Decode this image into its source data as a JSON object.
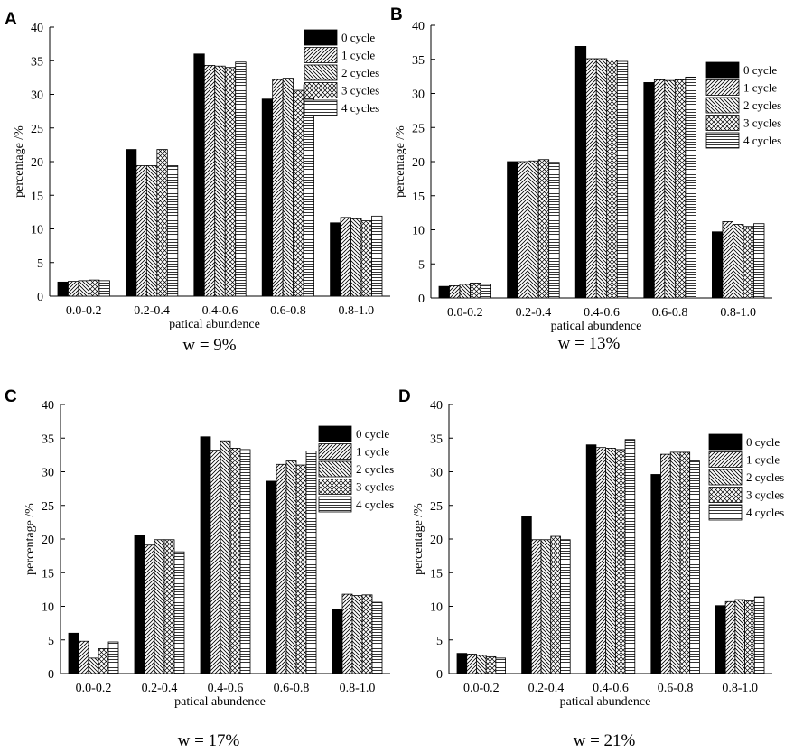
{
  "figure": {
    "legend_title": "",
    "colors": {
      "ink": "#000000",
      "background": "#ffffff",
      "solid_fill": "#000000"
    }
  },
  "chart_data": [
    {
      "type": "bar",
      "panel": "A",
      "caption": "w = 9%",
      "xlabel": "patical abundence",
      "ylabel": "percentage /%",
      "ylim": [
        0,
        40
      ],
      "yticks": [
        0,
        5,
        10,
        15,
        20,
        25,
        30,
        35,
        40
      ],
      "legend_position": "top-right",
      "categories": [
        "0.0-0.2",
        "0.2-0.4",
        "0.4-0.6",
        "0.6-0.8",
        "0.8-1.0"
      ],
      "series": [
        {
          "name": "0 cycle",
          "pattern": "solid",
          "values": [
            2.1,
            21.8,
            36.0,
            29.3,
            10.9
          ]
        },
        {
          "name": "1 cycle",
          "pattern": "diag-right",
          "values": [
            2.2,
            19.4,
            34.3,
            32.2,
            11.7
          ]
        },
        {
          "name": "2 cycles",
          "pattern": "diag-left",
          "values": [
            2.3,
            19.4,
            34.2,
            32.4,
            11.5
          ]
        },
        {
          "name": "3 cycles",
          "pattern": "cross",
          "values": [
            2.4,
            21.8,
            34.0,
            30.6,
            11.2
          ]
        },
        {
          "name": "4 cycles",
          "pattern": "horizontal",
          "values": [
            2.3,
            19.4,
            34.8,
            31.4,
            11.9
          ]
        }
      ]
    },
    {
      "type": "bar",
      "panel": "B",
      "caption": "w = 13%",
      "xlabel": "patical abundence",
      "ylabel": "percentage /%",
      "ylim": [
        0,
        40
      ],
      "yticks": [
        0,
        5,
        10,
        15,
        20,
        25,
        30,
        35,
        40
      ],
      "legend_position": "right",
      "categories": [
        "0.0-0.2",
        "0.2-0.4",
        "0.4-0.6",
        "0.6-0.8",
        "0.8-1.0"
      ],
      "series": [
        {
          "name": "0 cycle",
          "pattern": "solid",
          "values": [
            1.7,
            20.0,
            36.9,
            31.6,
            9.7
          ]
        },
        {
          "name": "1 cycle",
          "pattern": "diag-right",
          "values": [
            1.8,
            20.0,
            35.1,
            32.0,
            11.2
          ]
        },
        {
          "name": "2 cycles",
          "pattern": "diag-left",
          "values": [
            2.0,
            20.1,
            35.1,
            31.9,
            10.8
          ]
        },
        {
          "name": "3 cycles",
          "pattern": "cross",
          "values": [
            2.2,
            20.3,
            34.9,
            32.0,
            10.5
          ]
        },
        {
          "name": "4 cycles",
          "pattern": "horizontal",
          "values": [
            2.0,
            19.9,
            34.7,
            32.4,
            10.9
          ]
        }
      ]
    },
    {
      "type": "bar",
      "panel": "C",
      "caption": "w = 17%",
      "xlabel": "patical abundence",
      "ylabel": "percentage /%",
      "ylim": [
        0,
        40
      ],
      "yticks": [
        0,
        5,
        10,
        15,
        20,
        25,
        30,
        35,
        40
      ],
      "legend_position": "right",
      "categories": [
        "0.0-0.2",
        "0.2-0.4",
        "0.4-0.6",
        "0.6-0.8",
        "0.8-1.0"
      ],
      "series": [
        {
          "name": "0 cycle",
          "pattern": "solid",
          "values": [
            6.0,
            20.5,
            35.2,
            28.6,
            9.5
          ]
        },
        {
          "name": "1 cycle",
          "pattern": "diag-right",
          "values": [
            4.8,
            19.1,
            33.2,
            31.1,
            11.8
          ]
        },
        {
          "name": "2 cycles",
          "pattern": "diag-left",
          "values": [
            2.3,
            19.9,
            34.6,
            31.6,
            11.6
          ]
        },
        {
          "name": "3 cycles",
          "pattern": "cross",
          "values": [
            3.7,
            19.9,
            33.5,
            31.0,
            11.7
          ]
        },
        {
          "name": "4 cycles",
          "pattern": "horizontal",
          "values": [
            4.7,
            18.1,
            33.3,
            33.1,
            10.6
          ]
        }
      ]
    },
    {
      "type": "bar",
      "panel": "D",
      "caption": "w = 21%",
      "xlabel": "patical abundence",
      "ylabel": "percentage /%",
      "ylim": [
        0,
        40
      ],
      "yticks": [
        0,
        5,
        10,
        15,
        20,
        25,
        30,
        35,
        40
      ],
      "legend_position": "right",
      "categories": [
        "0.0-0.2",
        "0.2-0.4",
        "0.4-0.6",
        "0.6-0.8",
        "0.8-1.0"
      ],
      "series": [
        {
          "name": "0 cycle",
          "pattern": "solid",
          "values": [
            3.0,
            23.3,
            34.0,
            29.6,
            10.1
          ]
        },
        {
          "name": "1 cycle",
          "pattern": "diag-right",
          "values": [
            2.9,
            19.9,
            33.6,
            32.6,
            10.7
          ]
        },
        {
          "name": "2 cycles",
          "pattern": "diag-left",
          "values": [
            2.7,
            19.9,
            33.5,
            32.9,
            11.0
          ]
        },
        {
          "name": "3 cycles",
          "pattern": "cross",
          "values": [
            2.5,
            20.4,
            33.3,
            32.9,
            10.8
          ]
        },
        {
          "name": "4 cycles",
          "pattern": "horizontal",
          "values": [
            2.3,
            19.9,
            34.8,
            31.6,
            11.4
          ]
        }
      ]
    }
  ]
}
